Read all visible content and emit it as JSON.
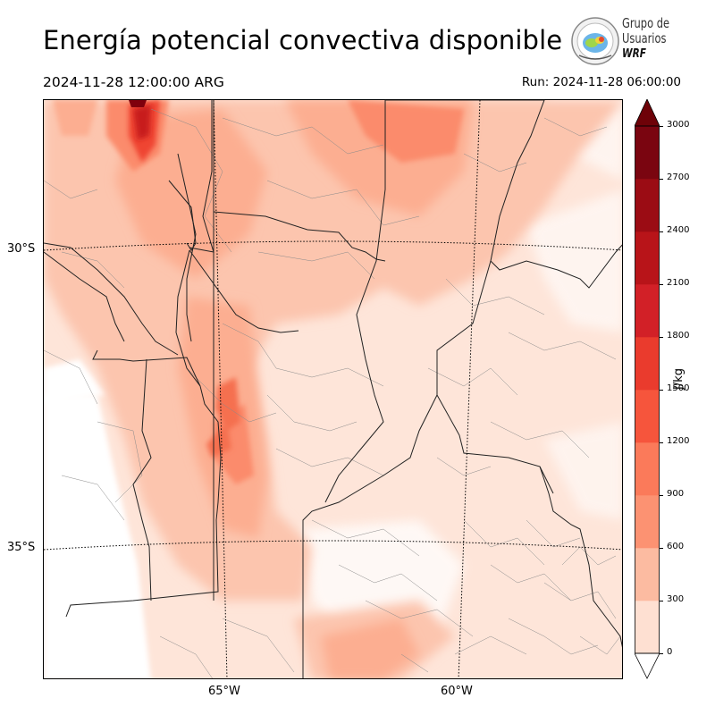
{
  "header": {
    "title": "Energía potencial convectiva disponible",
    "valid_time": "2024-11-28 12:00:00 ARG",
    "run_time": "Run: 2024-11-28 06:00:00"
  },
  "logo": {
    "line1": "Grupo de",
    "line2": "Usuarios",
    "line3": "WRF",
    "icon": "wrf-group-logo-icon"
  },
  "map": {
    "variable": "CAPE",
    "lat_labels": [
      "30°S",
      "35°S"
    ],
    "lon_labels": [
      "65°W",
      "60°W"
    ],
    "gridlines": "dotted",
    "shading_colors": [
      "#fee5d9",
      "#fcc5ae",
      "#fcae91",
      "#fb8b6c",
      "#f56f50",
      "#ef4533",
      "#de2a25",
      "#c81a1d",
      "#a91016",
      "#7f000d"
    ]
  },
  "colorbar": {
    "unit": "J/kg",
    "ticks": [
      "3000",
      "2700",
      "2400",
      "2100",
      "1800",
      "1500",
      "1200",
      "900",
      "600",
      "300",
      "0"
    ],
    "colors": [
      "#fff5f0",
      "#fee0d2",
      "#fcbba1",
      "#fc9272",
      "#fb7a5a",
      "#f6553c",
      "#ea3b2d",
      "#d22027",
      "#b81419",
      "#9b0c14",
      "#7a0510"
    ],
    "extend": "both",
    "levels": [
      0,
      300,
      600,
      900,
      1200,
      1500,
      1800,
      2100,
      2400,
      2700,
      3000
    ]
  }
}
